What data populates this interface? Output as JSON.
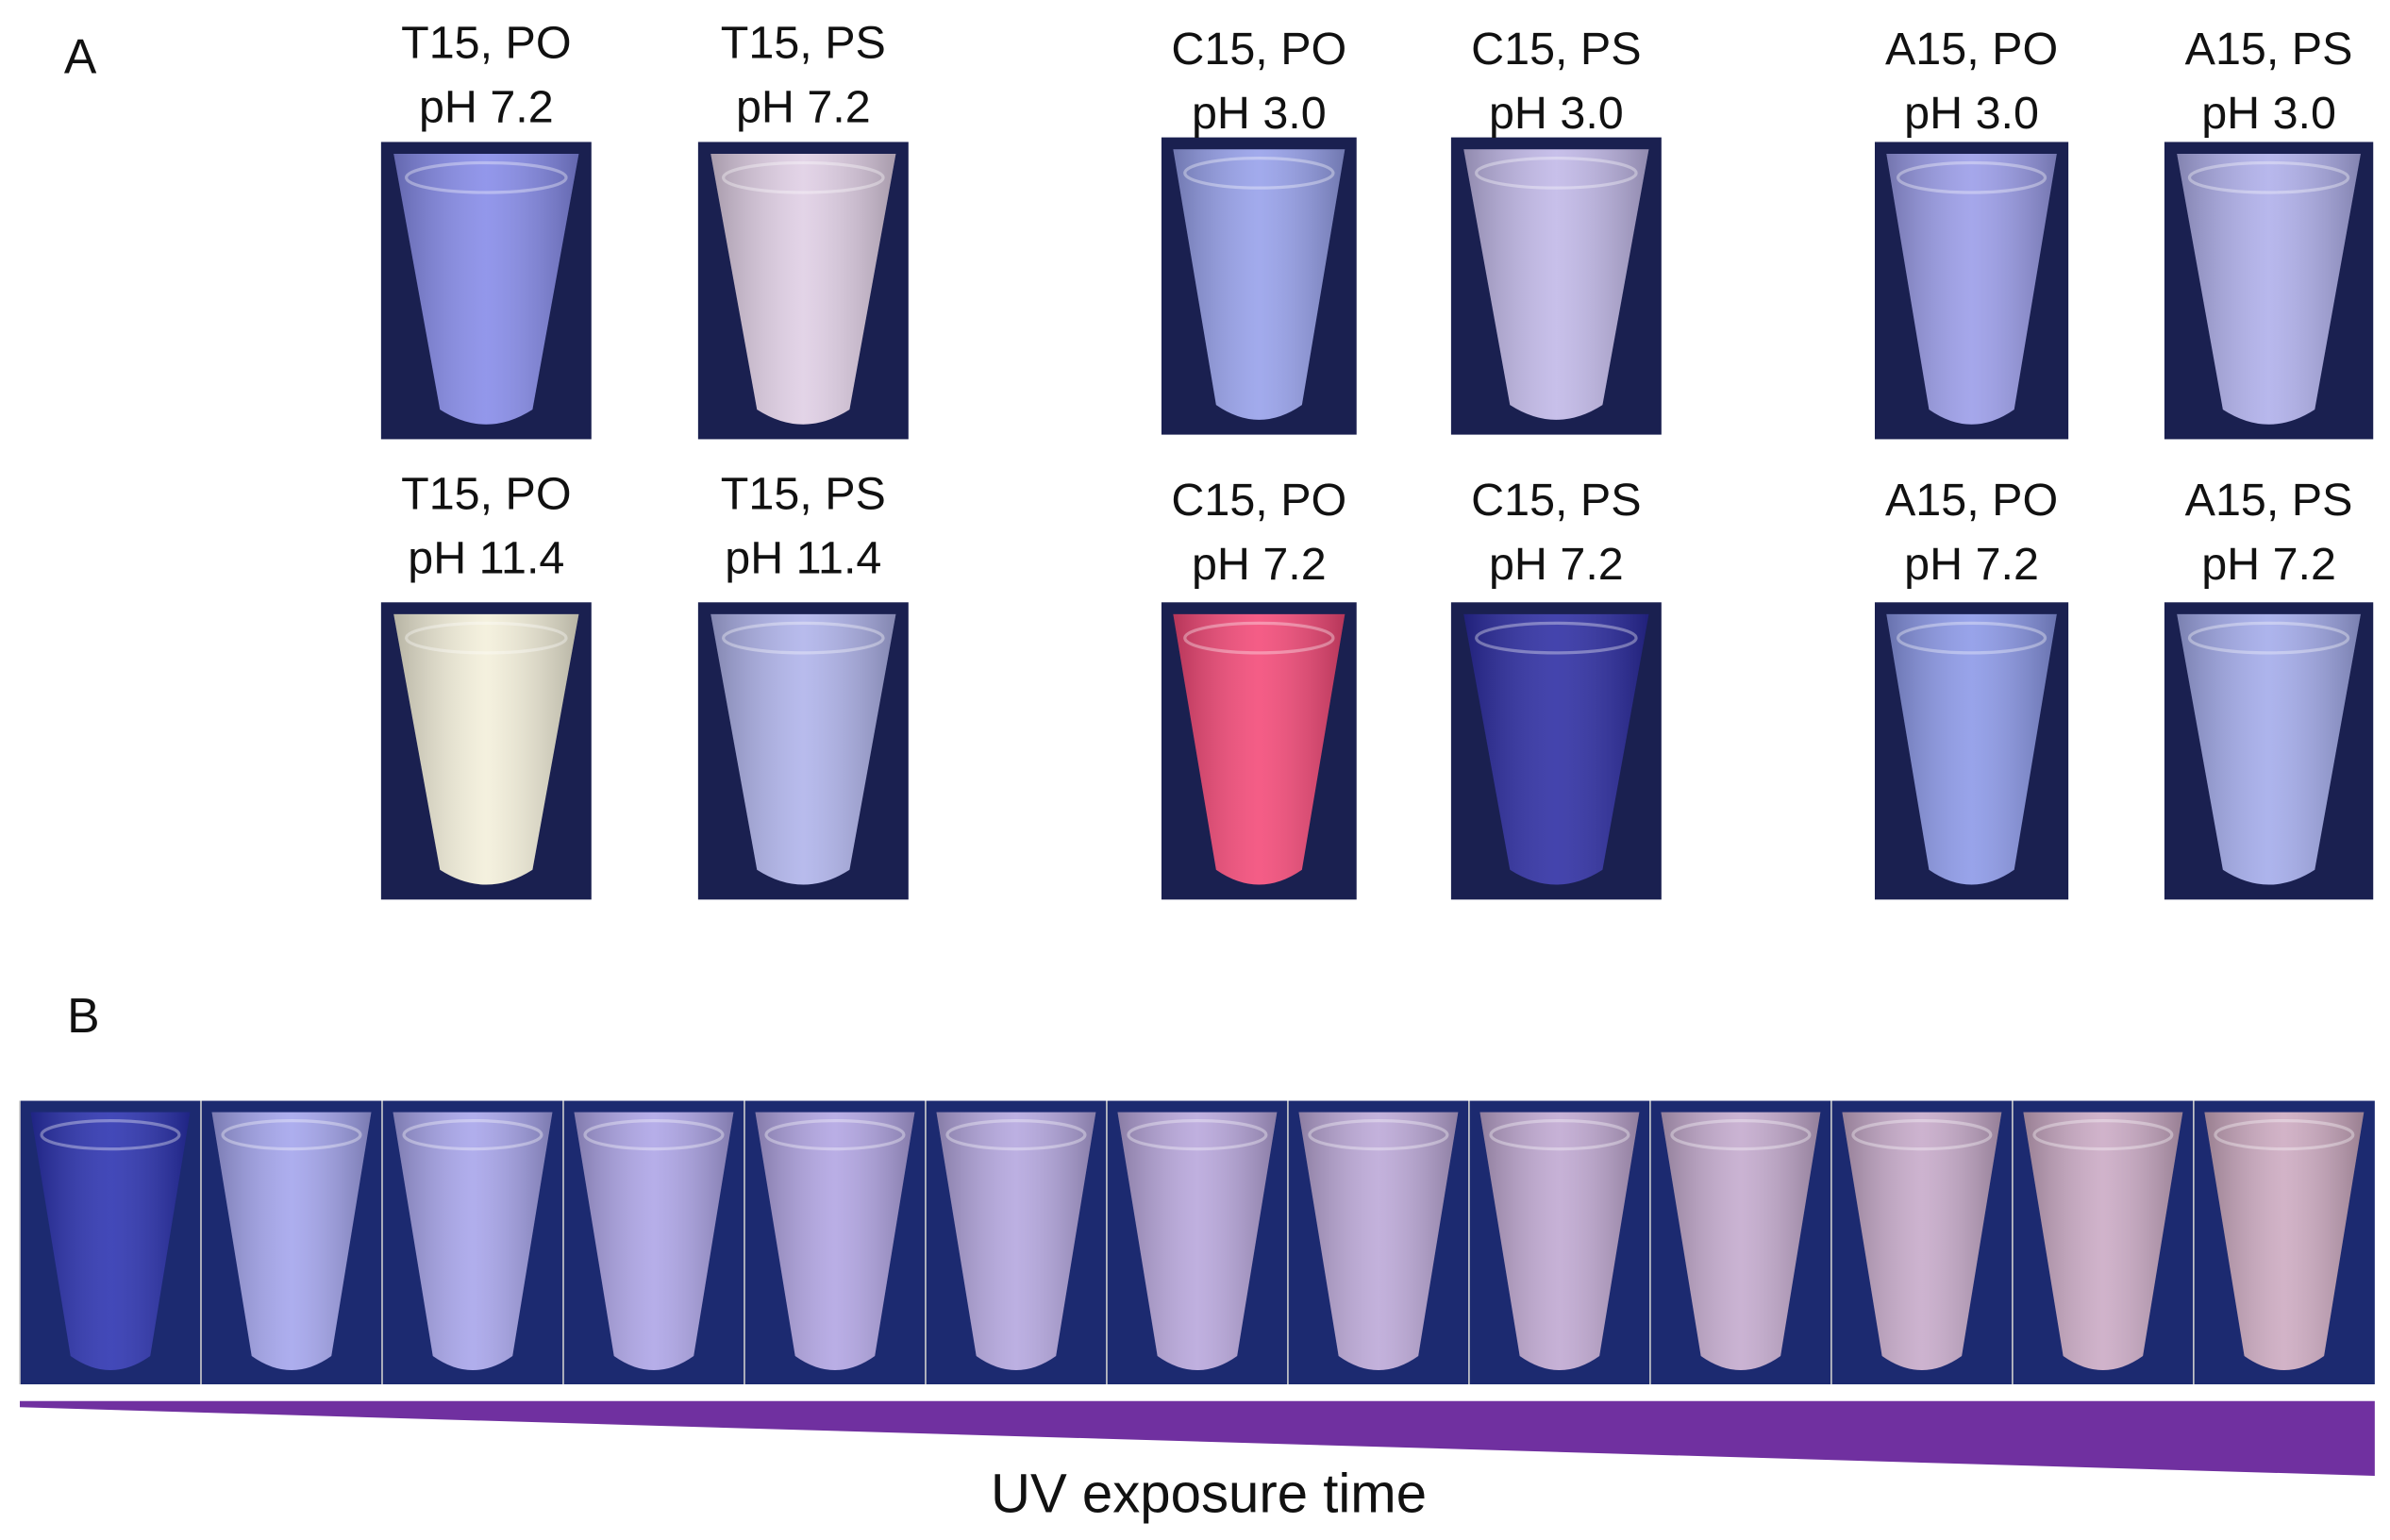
{
  "panel_a": {
    "label": "A",
    "tubes": [
      {
        "line1": "T15, PO",
        "line2": "pH 7.2"
      },
      {
        "line1": "T15, PS",
        "line2": "pH 7.2"
      },
      {
        "line1": "C15, PO",
        "line2": "pH 3.0"
      },
      {
        "line1": "C15, PS",
        "line2": "pH 3.0"
      },
      {
        "line1": "A15, PO",
        "line2": "pH 3.0"
      },
      {
        "line1": "A15, PS",
        "line2": "pH 3.0"
      },
      {
        "line1": "T15, PO",
        "line2": "pH 11.4"
      },
      {
        "line1": "T15, PS",
        "line2": "pH 11.4"
      },
      {
        "line1": "C15, PO",
        "line2": "pH 7.2"
      },
      {
        "line1": "C15, PS",
        "line2": "pH 7.2"
      },
      {
        "line1": "A15, PO",
        "line2": "pH 7.2"
      },
      {
        "line1": "A15, PS",
        "line2": "pH 7.2"
      }
    ]
  },
  "panel_b": {
    "label": "B",
    "axis_label": "UV exposure time"
  }
}
